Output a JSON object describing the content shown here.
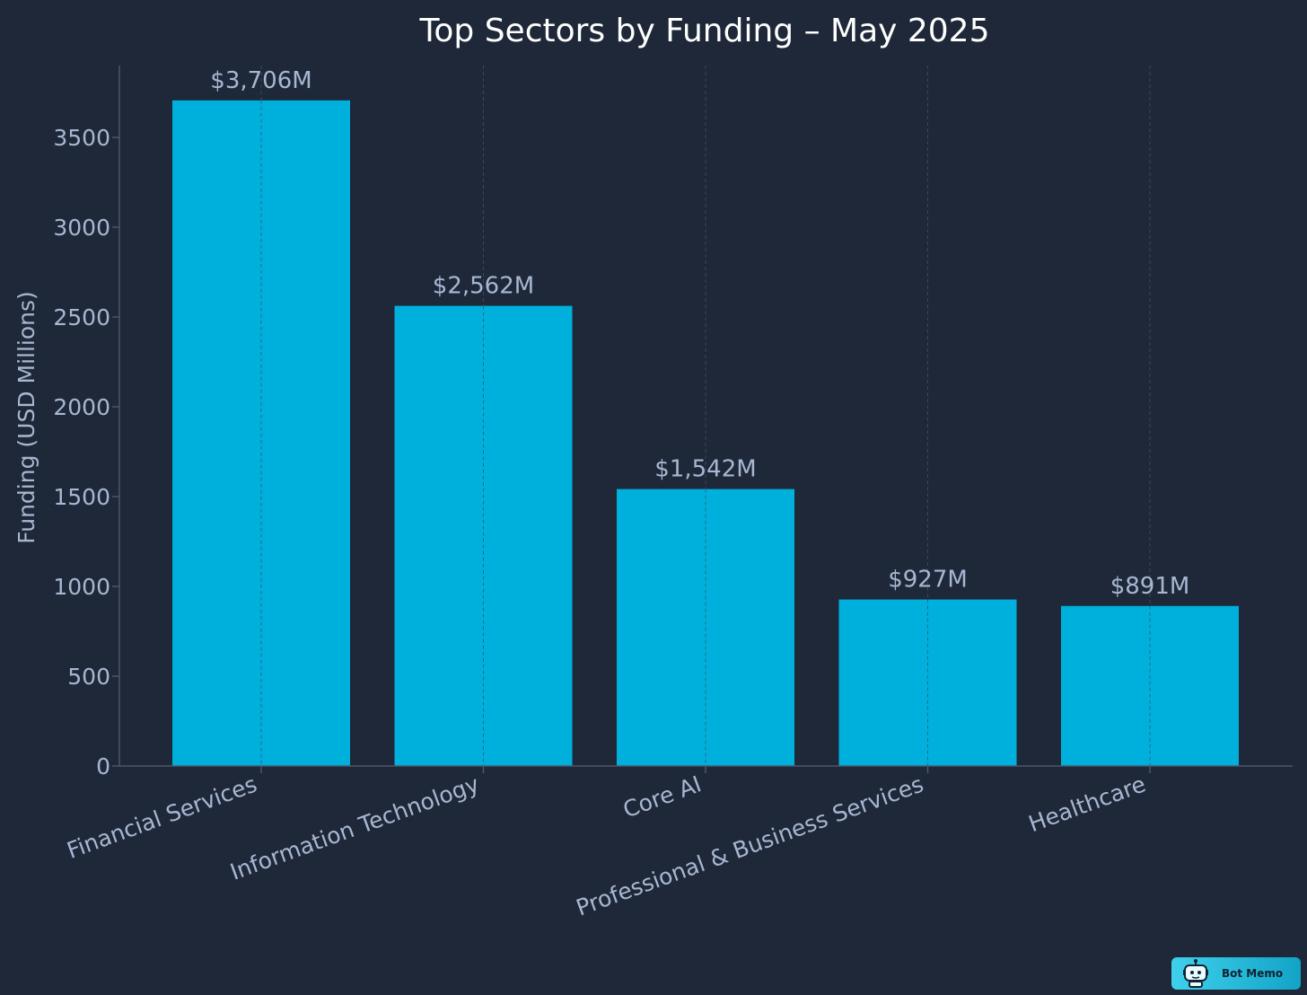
{
  "chart_data": {
    "type": "bar",
    "title": "Top Sectors by Funding – May 2025",
    "xlabel": "",
    "ylabel": "Funding (USD Millions)",
    "categories": [
      "Financial Services",
      "Information Technology",
      "Core AI",
      "Professional & Business Services",
      "Healthcare"
    ],
    "values": [
      3706,
      2562,
      1542,
      927,
      891
    ],
    "value_labels": [
      "$3,706M",
      "$2,562M",
      "$1,542M",
      "$927M",
      "$891M"
    ],
    "ylim": [
      0,
      3900
    ],
    "yticks": [
      0,
      500,
      1000,
      1500,
      2000,
      2500,
      3000,
      3500
    ],
    "grid": "vertical dashed",
    "legend": "none",
    "colors": {
      "background": "#1f2839",
      "bar": "#00b0dc",
      "text": "#a7b7d1",
      "title": "#ffffff",
      "axis": "#4b5669"
    }
  },
  "watermark": {
    "label": "Bot Memo",
    "icon": "robot-icon"
  }
}
